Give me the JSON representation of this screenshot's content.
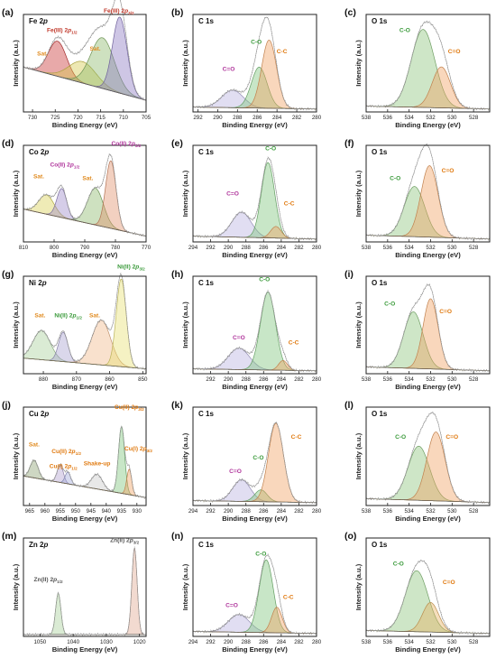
{
  "chart_data": [
    {
      "panel": "(a)",
      "title": "Fe 2p",
      "type": "area",
      "xlabel": "Binding Energy (eV)",
      "ylabel": "Intensity (a.u.)",
      "xlim": [
        732,
        705
      ],
      "xticks": [
        730,
        725,
        720,
        715,
        710,
        705
      ],
      "background": {
        "left": 0.46,
        "right": 0.12
      },
      "peaks": [
        {
          "label": "Fe(III) 2p1/2",
          "center": 724.5,
          "height": 0.36,
          "width": 2.0,
          "color": "#c83232"
        },
        {
          "label": "Sat.",
          "center": 719,
          "height": 0.22,
          "width": 3.0,
          "color": "#d4c84a"
        },
        {
          "label": "Sat.",
          "center": 714.6,
          "height": 0.52,
          "width": 2.6,
          "color": "#8ab86a"
        },
        {
          "label": "Fe(III) 2p3/2",
          "center": 710.8,
          "height": 0.78,
          "width": 1.6,
          "color": "#8a78c0"
        }
      ],
      "annotations": [
        {
          "text": "Fe(III) 2p3/2",
          "x": 711,
          "y": 1.02,
          "color": "#c0392b"
        },
        {
          "text": "Fe(III) 2p1/2",
          "x": 723.5,
          "y": 0.82,
          "color": "#c0392b"
        },
        {
          "text": "Sat.",
          "x": 727.8,
          "y": 0.58,
          "color": "#e08a1e"
        },
        {
          "text": "Sat.",
          "x": 716.2,
          "y": 0.63,
          "color": "#e08a1e"
        }
      ]
    },
    {
      "panel": "(b)",
      "title": "C 1s",
      "type": "area",
      "xlabel": "Binding Energy (eV)",
      "ylabel": "Intensity (a.u.)",
      "xlim": [
        292.5,
        280
      ],
      "xticks": [
        292,
        290,
        288,
        286,
        284,
        282,
        280
      ],
      "background": {
        "left": 0.05,
        "right": 0.03
      },
      "peaks": [
        {
          "label": "C=O",
          "center": 288.5,
          "height": 0.18,
          "width": 1.1,
          "color": "#b8b0e0"
        },
        {
          "label": "C-O",
          "center": 285.8,
          "height": 0.42,
          "width": 0.8,
          "color": "#7cc47a"
        },
        {
          "label": "C-C",
          "center": 284.8,
          "height": 0.7,
          "width": 0.75,
          "color": "#f0a060"
        }
      ],
      "annotations": [
        {
          "text": "C=O",
          "x": 288.9,
          "y": 0.42,
          "color": "#b0369c"
        },
        {
          "text": "C-O",
          "x": 286.1,
          "y": 0.7,
          "color": "#3a9a3a"
        },
        {
          "text": "C-C",
          "x": 283.5,
          "y": 0.6,
          "color": "#e07a10"
        }
      ]
    },
    {
      "panel": "(c)",
      "title": "O 1s",
      "type": "area",
      "xlabel": "Binding Energy (eV)",
      "ylabel": "Intensity (a.u.)",
      "xlim": [
        538,
        526.5
      ],
      "xticks": [
        538,
        536,
        534,
        532,
        530,
        528
      ],
      "background": {
        "left": 0.06,
        "right": 0.03
      },
      "peaks": [
        {
          "label": "C-O",
          "center": 532.7,
          "height": 0.8,
          "width": 1.1,
          "color": "#8ac47a"
        },
        {
          "label": "C=O",
          "center": 531.0,
          "height": 0.42,
          "width": 0.85,
          "color": "#f0a060"
        }
      ],
      "annotations": [
        {
          "text": "C-O",
          "x": 534.4,
          "y": 0.82,
          "color": "#3a9a3a"
        },
        {
          "text": "C=O",
          "x": 529.8,
          "y": 0.6,
          "color": "#e07a10"
        }
      ]
    },
    {
      "panel": "(d)",
      "title": "Co 2p",
      "type": "area",
      "xlabel": "Binding Energy (eV)",
      "ylabel": "Intensity (a.u.)",
      "xlim": [
        810,
        770
      ],
      "xticks": [
        810,
        800,
        790,
        780,
        770
      ],
      "background": {
        "left": 0.34,
        "right": 0.06
      },
      "peaks": [
        {
          "label": "Sat.",
          "center": 802.5,
          "height": 0.2,
          "width": 2.5,
          "color": "#d8d050"
        },
        {
          "label": "Co(II) 2p1/2",
          "center": 797.5,
          "height": 0.3,
          "width": 1.6,
          "color": "#9a88c8"
        },
        {
          "label": "Sat.",
          "center": 786.5,
          "height": 0.38,
          "width": 2.6,
          "color": "#8ab86a"
        },
        {
          "label": "Co(II) 2p3/2",
          "center": 781.5,
          "height": 0.7,
          "width": 1.7,
          "color": "#e0906a"
        }
      ],
      "annotations": [
        {
          "text": "Co(II) 2p3/2",
          "x": 776.5,
          "y": 1.0,
          "color": "#b0369c"
        },
        {
          "text": "Co(II) 2p1/2",
          "x": 796.5,
          "y": 0.78,
          "color": "#b0369c"
        },
        {
          "text": "Sat.",
          "x": 805,
          "y": 0.66,
          "color": "#e08a1e"
        },
        {
          "text": "Sat.",
          "x": 789,
          "y": 0.64,
          "color": "#e08a1e"
        }
      ]
    },
    {
      "panel": "(e)",
      "title": "C 1s",
      "type": "area",
      "xlabel": "Binding Energy (eV)",
      "ylabel": "Intensity (a.u.)",
      "xlim": [
        294,
        280
      ],
      "xticks": [
        294,
        292,
        290,
        288,
        286,
        284,
        282,
        280
      ],
      "background": {
        "left": 0.06,
        "right": 0.03
      },
      "peaks": [
        {
          "label": "C=O",
          "center": 288.5,
          "height": 0.26,
          "width": 1.1,
          "color": "#b8b0e0"
        },
        {
          "label": "C-O",
          "center": 285.5,
          "height": 0.78,
          "width": 0.75,
          "color": "#7cc47a"
        },
        {
          "label": "C-C",
          "center": 284.6,
          "height": 0.12,
          "width": 0.6,
          "color": "#f0a060"
        }
      ],
      "annotations": [
        {
          "text": "C-O",
          "x": 285.2,
          "y": 0.95,
          "color": "#3a9a3a"
        },
        {
          "text": "C=O",
          "x": 289.5,
          "y": 0.48,
          "color": "#b0369c"
        },
        {
          "text": "C-C",
          "x": 283.1,
          "y": 0.38,
          "color": "#e07a10"
        }
      ]
    },
    {
      "panel": "(f)",
      "title": "O 1s",
      "type": "area",
      "xlabel": "Binding Energy (eV)",
      "ylabel": "Intensity (a.u.)",
      "xlim": [
        538,
        526.5
      ],
      "xticks": [
        538,
        536,
        534,
        532,
        530,
        528
      ],
      "background": {
        "left": 0.07,
        "right": 0.03
      },
      "peaks": [
        {
          "label": "C-O",
          "center": 533.5,
          "height": 0.52,
          "width": 0.95,
          "color": "#8ac47a"
        },
        {
          "label": "C=O",
          "center": 532.1,
          "height": 0.74,
          "width": 0.8,
          "color": "#f0a060"
        }
      ],
      "annotations": [
        {
          "text": "C-O",
          "x": 535.3,
          "y": 0.64,
          "color": "#3a9a3a"
        },
        {
          "text": "C=O",
          "x": 530.4,
          "y": 0.72,
          "color": "#e07a10"
        }
      ]
    },
    {
      "panel": "(g)",
      "title": "Ni 2p",
      "type": "area",
      "xlabel": "Binding Energy (eV)",
      "ylabel": "Intensity (a.u.)",
      "xlim": [
        886,
        849
      ],
      "xticks": [
        880,
        870,
        860,
        850
      ],
      "background": {
        "left": 0.16,
        "right": 0.05
      },
      "peaks": [
        {
          "label": "Sat.",
          "center": 880.5,
          "height": 0.3,
          "width": 2.6,
          "color": "#a8d098"
        },
        {
          "label": "Ni(II) 2p1/2",
          "center": 874,
          "height": 0.3,
          "width": 1.4,
          "color": "#a8a0d0"
        },
        {
          "label": "Sat.",
          "center": 862.5,
          "height": 0.46,
          "width": 2.8,
          "color": "#f0b888"
        },
        {
          "label": "Ni(II) 2p3/2",
          "center": 856.5,
          "height": 0.9,
          "width": 1.5,
          "color": "#e8e070"
        }
      ],
      "annotations": [
        {
          "text": "Ni(II) 2p3/2",
          "x": 853.5,
          "y": 1.08,
          "color": "#3a9a3a"
        },
        {
          "text": "Sat.",
          "x": 881,
          "y": 0.58,
          "color": "#e08a1e"
        },
        {
          "text": "Ni(II) 2p1/2",
          "x": 872.5,
          "y": 0.58,
          "color": "#3a9a3a"
        },
        {
          "text": "Sat.",
          "x": 864.5,
          "y": 0.58,
          "color": "#e08a1e"
        }
      ]
    },
    {
      "panel": "(h)",
      "title": "C 1s",
      "type": "area",
      "xlabel": "Binding Energy (eV)",
      "ylabel": "Intensity (a.u.)",
      "xlim": [
        294,
        280
      ],
      "xticks": [
        292,
        290,
        288,
        286,
        284,
        282,
        280
      ],
      "background": {
        "left": 0.05,
        "right": 0.03
      },
      "peaks": [
        {
          "label": "C=O",
          "center": 288.8,
          "height": 0.22,
          "width": 1.2,
          "color": "#b8b0e0"
        },
        {
          "label": "C-O",
          "center": 285.5,
          "height": 0.8,
          "width": 0.85,
          "color": "#7cc47a"
        },
        {
          "label": "C-C",
          "center": 283.8,
          "height": 0.1,
          "width": 0.5,
          "color": "#f0a060"
        }
      ],
      "annotations": [
        {
          "text": "C-O",
          "x": 285.9,
          "y": 0.95,
          "color": "#3a9a3a"
        },
        {
          "text": "C=O",
          "x": 288.8,
          "y": 0.35,
          "color": "#b0369c"
        },
        {
          "text": "C-C",
          "x": 282.6,
          "y": 0.3,
          "color": "#e07a10"
        }
      ]
    },
    {
      "panel": "(i)",
      "title": "O 1s",
      "type": "area",
      "xlabel": "Binding Energy (eV)",
      "ylabel": "Intensity (a.u.)",
      "xlim": [
        538,
        526.5
      ],
      "xticks": [
        538,
        536,
        534,
        532,
        530,
        528
      ],
      "background": {
        "left": 0.07,
        "right": 0.03
      },
      "peaks": [
        {
          "label": "C-O",
          "center": 533.6,
          "height": 0.58,
          "width": 0.9,
          "color": "#8ac47a"
        },
        {
          "label": "C=O",
          "center": 532.0,
          "height": 0.72,
          "width": 0.7,
          "color": "#f0a060"
        }
      ],
      "annotations": [
        {
          "text": "C-O",
          "x": 535.8,
          "y": 0.7,
          "color": "#3a9a3a"
        },
        {
          "text": "C=O",
          "x": 530.6,
          "y": 0.62,
          "color": "#e07a10"
        }
      ]
    },
    {
      "panel": "(j)",
      "title": "Cu 2p",
      "type": "area",
      "xlabel": "Binding Energy (eV)",
      "ylabel": "Intensity (a.u.)",
      "xlim": [
        967,
        927
      ],
      "xticks": [
        965,
        960,
        955,
        950,
        945,
        940,
        935,
        930
      ],
      "background": {
        "left": 0.3,
        "right": 0.08
      },
      "peaks": [
        {
          "label": "Sat.",
          "center": 963.5,
          "height": 0.18,
          "width": 1.3,
          "color": "#8aa070"
        },
        {
          "label": "Cu(II) 2p1/2",
          "center": 955,
          "height": 0.18,
          "width": 1.0,
          "color": "#b0a0d0"
        },
        {
          "label": "Cu(I) 2p1/2",
          "center": 952.5,
          "height": 0.12,
          "width": 0.9,
          "color": "#a0a8d8"
        },
        {
          "label": "Shake-up",
          "center": 943,
          "height": 0.15,
          "width": 1.8,
          "color": "#c8c8c8"
        },
        {
          "label": "Cu(II) 2p3/2",
          "center": 935,
          "height": 0.68,
          "width": 1.0,
          "color": "#7cc47a"
        },
        {
          "label": "Cu(I) 2p3/2",
          "center": 932.5,
          "height": 0.26,
          "width": 0.8,
          "color": "#f0a060"
        }
      ],
      "annotations": [
        {
          "text": "Cu(II) 2p3/2",
          "x": 932.5,
          "y": 0.98,
          "color": "#e07a10"
        },
        {
          "text": "Sat.",
          "x": 963.5,
          "y": 0.6,
          "color": "#e08a1e"
        },
        {
          "text": "Cu(II) 2p1/2",
          "x": 953,
          "y": 0.53,
          "color": "#e07a10"
        },
        {
          "text": "Cu(I) 2p1/2",
          "x": 954,
          "y": 0.38,
          "color": "#e07a10"
        },
        {
          "text": "Shake-up",
          "x": 943,
          "y": 0.41,
          "color": "#e07a10"
        },
        {
          "text": "Cu(I) 2p3/2",
          "x": 929.5,
          "y": 0.56,
          "color": "#e07a10"
        }
      ]
    },
    {
      "panel": "(k)",
      "title": "C 1s",
      "type": "area",
      "xlabel": "Binding Energy (eV)",
      "ylabel": "Intensity (a.u.)",
      "xlim": [
        294,
        280
      ],
      "xticks": [
        294,
        292,
        290,
        288,
        286,
        284,
        282,
        280
      ],
      "background": {
        "left": 0.05,
        "right": 0.03
      },
      "peaks": [
        {
          "label": "C=O",
          "center": 288.5,
          "height": 0.22,
          "width": 1.0,
          "color": "#b8b0e0"
        },
        {
          "label": "C-O",
          "center": 286.3,
          "height": 0.12,
          "width": 0.7,
          "color": "#7cc47a"
        },
        {
          "label": "C-C",
          "center": 284.6,
          "height": 0.8,
          "width": 0.85,
          "color": "#f0a060"
        }
      ],
      "annotations": [
        {
          "text": "C-C",
          "x": 282.3,
          "y": 0.68,
          "color": "#e07a10"
        },
        {
          "text": "C-O",
          "x": 286.6,
          "y": 0.47,
          "color": "#3a9a3a"
        },
        {
          "text": "C=O",
          "x": 289.2,
          "y": 0.33,
          "color": "#b0369c"
        }
      ]
    },
    {
      "panel": "(l)",
      "title": "O 1s",
      "type": "area",
      "xlabel": "Binding Energy (eV)",
      "ylabel": "Intensity (a.u.)",
      "xlim": [
        538,
        526.5
      ],
      "xticks": [
        538,
        536,
        534,
        532,
        530,
        528
      ],
      "background": {
        "left": 0.07,
        "right": 0.03
      },
      "peaks": [
        {
          "label": "C-O",
          "center": 533.1,
          "height": 0.55,
          "width": 1.0,
          "color": "#8ac47a"
        },
        {
          "label": "C=O",
          "center": 531.5,
          "height": 0.7,
          "width": 0.85,
          "color": "#f0a060"
        }
      ],
      "annotations": [
        {
          "text": "C-O",
          "x": 534.8,
          "y": 0.68,
          "color": "#3a9a3a"
        },
        {
          "text": "C=O",
          "x": 530.0,
          "y": 0.68,
          "color": "#e07a10"
        }
      ]
    },
    {
      "panel": "(m)",
      "title": "Zn 2p",
      "type": "area",
      "xlabel": "Binding Energy (eV)",
      "ylabel": "Intensity (a.u.)",
      "xlim": [
        1055,
        1018
      ],
      "xticks": [
        1050,
        1040,
        1030,
        1020
      ],
      "background": {
        "left": 0.02,
        "right": 0.02
      },
      "peaks": [
        {
          "label": "Zn(II) 2p1/2",
          "center": 1044.5,
          "height": 0.42,
          "width": 0.8,
          "color": "#a8d098"
        },
        {
          "label": "Zn(II) 2p3/2",
          "center": 1021.5,
          "height": 0.88,
          "width": 0.8,
          "color": "#e0a890"
        }
      ],
      "annotations": [
        {
          "text": "Zn(II) 2p3/2",
          "x": 1024.5,
          "y": 0.96,
          "color": "#555555"
        },
        {
          "text": "Zn(II) 2p1/2",
          "x": 1047.5,
          "y": 0.56,
          "color": "#555555"
        }
      ]
    },
    {
      "panel": "(n)",
      "title": "C 1s",
      "type": "area",
      "xlabel": "Binding Energy (eV)",
      "ylabel": "Intensity (a.u.)",
      "xlim": [
        294,
        280
      ],
      "xticks": [
        294,
        292,
        290,
        288,
        286,
        284,
        282,
        280
      ],
      "background": {
        "left": 0.05,
        "right": 0.03
      },
      "peaks": [
        {
          "label": "C=O",
          "center": 288.8,
          "height": 0.18,
          "width": 1.2,
          "color": "#b8b0e0"
        },
        {
          "label": "C-O",
          "center": 285.7,
          "height": 0.74,
          "width": 0.8,
          "color": "#7cc47a"
        },
        {
          "label": "C-C",
          "center": 284.5,
          "height": 0.26,
          "width": 0.6,
          "color": "#f0a060"
        }
      ],
      "annotations": [
        {
          "text": "C-O",
          "x": 286.3,
          "y": 0.82,
          "color": "#3a9a3a"
        },
        {
          "text": "C=O",
          "x": 289.6,
          "y": 0.3,
          "color": "#b0369c"
        },
        {
          "text": "C-C",
          "x": 283.2,
          "y": 0.38,
          "color": "#e07a10"
        }
      ]
    },
    {
      "panel": "(o)",
      "title": "O 1s",
      "type": "area",
      "xlabel": "Binding Energy (eV)",
      "ylabel": "Intensity (a.u.)",
      "xlim": [
        538,
        526.5
      ],
      "xticks": [
        538,
        536,
        534,
        532,
        530,
        528
      ],
      "background": {
        "left": 0.06,
        "right": 0.03
      },
      "peaks": [
        {
          "label": "C-O",
          "center": 533.3,
          "height": 0.62,
          "width": 1.05,
          "color": "#8ac47a"
        },
        {
          "label": "C=O",
          "center": 532.0,
          "height": 0.3,
          "width": 0.75,
          "color": "#e8b060"
        }
      ],
      "annotations": [
        {
          "text": "C-O",
          "x": 535.0,
          "y": 0.72,
          "color": "#3a9a3a"
        },
        {
          "text": "C=O",
          "x": 530.3,
          "y": 0.53,
          "color": "#e07a10"
        }
      ]
    }
  ]
}
